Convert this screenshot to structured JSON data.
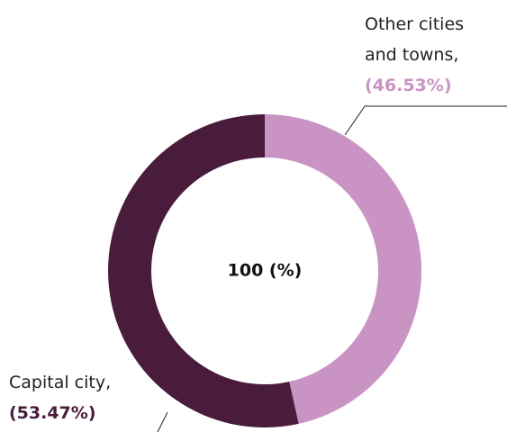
{
  "chart_data": {
    "type": "donut",
    "center_label": "100 (%)",
    "categories": [
      "Other cities and towns,",
      "Capital city,"
    ],
    "values": [
      46.53,
      53.47
    ],
    "value_labels": [
      "(46.53%)",
      "(53.47%)"
    ],
    "colors": [
      "#c994c3",
      "#4a1c3c"
    ]
  }
}
